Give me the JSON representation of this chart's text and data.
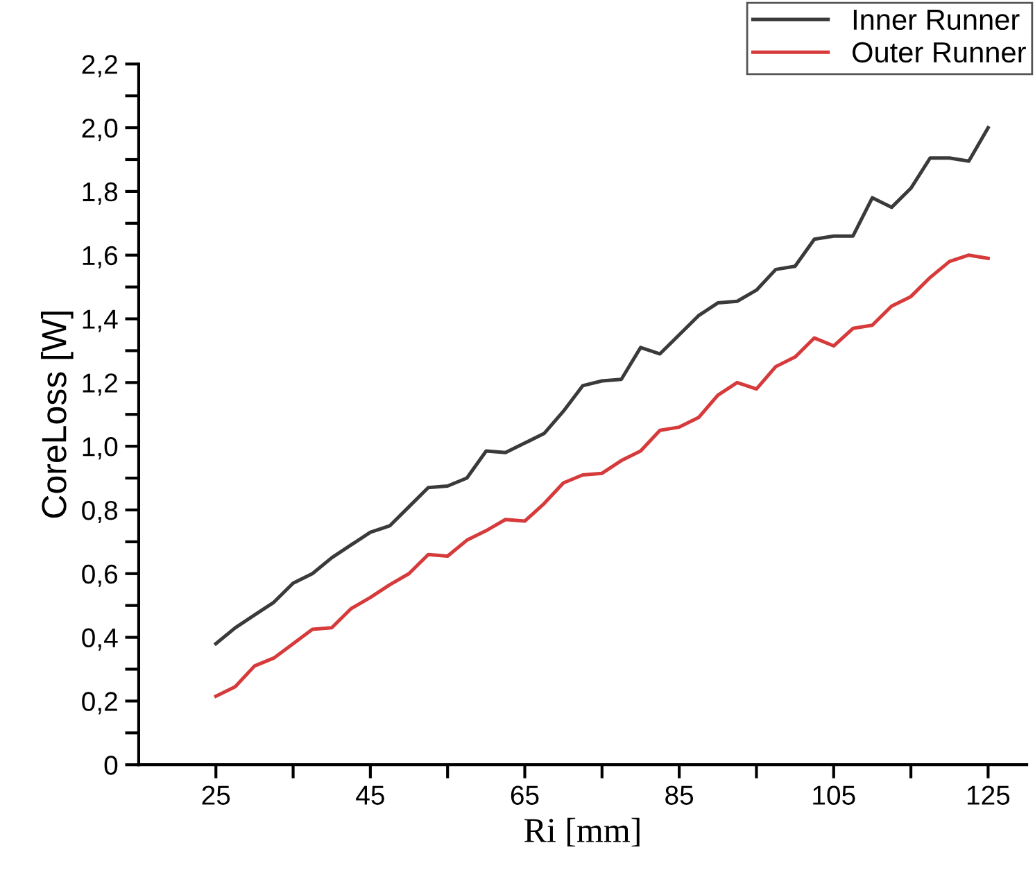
{
  "chart_data": {
    "type": "line",
    "xlabel": "Ri [mm]",
    "ylabel": "CoreLoss [W]",
    "x": [
      25,
      27.5,
      30,
      32.5,
      35,
      37.5,
      40,
      42.5,
      45,
      47.5,
      50,
      52.5,
      55,
      57.5,
      60,
      62.5,
      65,
      67.5,
      70,
      72.5,
      75,
      77.5,
      80,
      82.5,
      85,
      87.5,
      90,
      92.5,
      95,
      97.5,
      100,
      102.5,
      105,
      107.5,
      110,
      112.5,
      115,
      117.5,
      120,
      122.5,
      125
    ],
    "series": [
      {
        "name": "Inner Runner",
        "color": "#3a3a3a",
        "values": [
          0.38,
          0.43,
          0.47,
          0.51,
          0.57,
          0.6,
          0.65,
          0.69,
          0.73,
          0.75,
          0.81,
          0.87,
          0.875,
          0.9,
          0.985,
          0.98,
          1.01,
          1.04,
          1.11,
          1.19,
          1.205,
          1.21,
          1.31,
          1.29,
          1.35,
          1.41,
          1.45,
          1.455,
          1.49,
          1.555,
          1.565,
          1.65,
          1.66,
          1.66,
          1.78,
          1.75,
          1.81,
          1.905,
          1.905,
          1.895,
          2.0
        ]
      },
      {
        "name": "Outer Runner",
        "color": "#d63a3a",
        "values": [
          0.215,
          0.245,
          0.31,
          0.335,
          0.38,
          0.425,
          0.43,
          0.49,
          0.525,
          0.565,
          0.6,
          0.66,
          0.655,
          0.705,
          0.735,
          0.77,
          0.765,
          0.82,
          0.885,
          0.91,
          0.915,
          0.955,
          0.985,
          1.05,
          1.06,
          1.09,
          1.16,
          1.2,
          1.18,
          1.25,
          1.28,
          1.34,
          1.315,
          1.37,
          1.38,
          1.44,
          1.47,
          1.53,
          1.58,
          1.6,
          1.59
        ]
      }
    ],
    "xlim": [
      15,
      130
    ],
    "ylim": [
      0,
      2.2
    ],
    "xticks": [
      25,
      {
        "value": 35,
        "label": null
      },
      45,
      {
        "value": 55,
        "label": null
      },
      65,
      {
        "value": 75,
        "label": null
      },
      85,
      {
        "value": 95,
        "label": null
      },
      105,
      {
        "value": 115,
        "label": null
      },
      125
    ],
    "yticks": [
      0,
      {
        "value": 0.1,
        "label": null
      },
      {
        "value": 0.2,
        "label": "0,2"
      },
      {
        "value": 0.3,
        "label": null
      },
      {
        "value": 0.4,
        "label": "0,4"
      },
      {
        "value": 0.5,
        "label": null
      },
      {
        "value": 0.6,
        "label": "0,6"
      },
      {
        "value": 0.7,
        "label": null
      },
      {
        "value": 0.8,
        "label": "0,8"
      },
      {
        "value": 0.9,
        "label": null
      },
      {
        "value": 1.0,
        "label": "1,0"
      },
      {
        "value": 1.1,
        "label": null
      },
      {
        "value": 1.2,
        "label": "1,2"
      },
      {
        "value": 1.3,
        "label": null
      },
      {
        "value": 1.4,
        "label": "1,4"
      },
      {
        "value": 1.5,
        "label": null
      },
      {
        "value": 1.6,
        "label": "1,6"
      },
      {
        "value": 1.7,
        "label": null
      },
      {
        "value": 1.8,
        "label": "1,8"
      },
      {
        "value": 1.9,
        "label": null
      },
      {
        "value": 2.0,
        "label": "2,0"
      },
      {
        "value": 2.1,
        "label": null
      },
      {
        "value": 2.2,
        "label": "2,2"
      }
    ],
    "grid": false,
    "legend": "top right",
    "marker": "none",
    "line_style": "solid"
  }
}
